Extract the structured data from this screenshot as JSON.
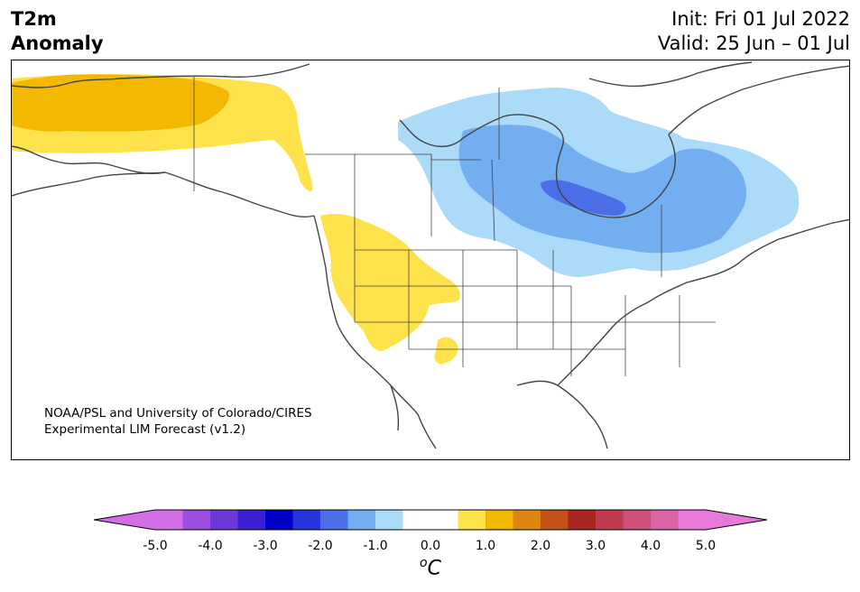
{
  "header": {
    "title_line1": "T2m",
    "title_line2": "Anomaly",
    "init": "Init: Fri 01 Jul 2022",
    "valid": "Valid: 25 Jun – 01 Jul"
  },
  "credit": {
    "line1": "NOAA/PSL and University of Colorado/CIRES",
    "line2": "Experimental LIM Forecast (v1.2)"
  },
  "colorbar": {
    "unit_base": "C",
    "unit_sup": "o",
    "ticks": [
      "-5.0",
      "-4.0",
      "-3.0",
      "-2.0",
      "-1.0",
      "0.0",
      "1.0",
      "2.0",
      "3.0",
      "4.0",
      "5.0"
    ],
    "colors_low_extend": "#d16ee6",
    "colors": [
      "#d16ee6",
      "#9c4fe0",
      "#6d38da",
      "#3c1fd2",
      "#0000c8",
      "#2634dc",
      "#4c6fe8",
      "#73aef1",
      "#acdaf9",
      "#ffffff",
      "#ffffff",
      "#fee24c",
      "#f2b900",
      "#dc8511",
      "#c45117",
      "#a8261f",
      "#c13a4f",
      "#cd4f7a",
      "#d965a6",
      "#e77ad8"
    ],
    "colors_high_extend": "#e77ad8"
  },
  "anomaly_colors": {
    "light_yellow": "#fee24c",
    "gold": "#f2b900",
    "light_blue": "#acdaf9",
    "mid_blue": "#73aef1",
    "dark_blue": "#4c6fe8",
    "coast": "#444444"
  }
}
